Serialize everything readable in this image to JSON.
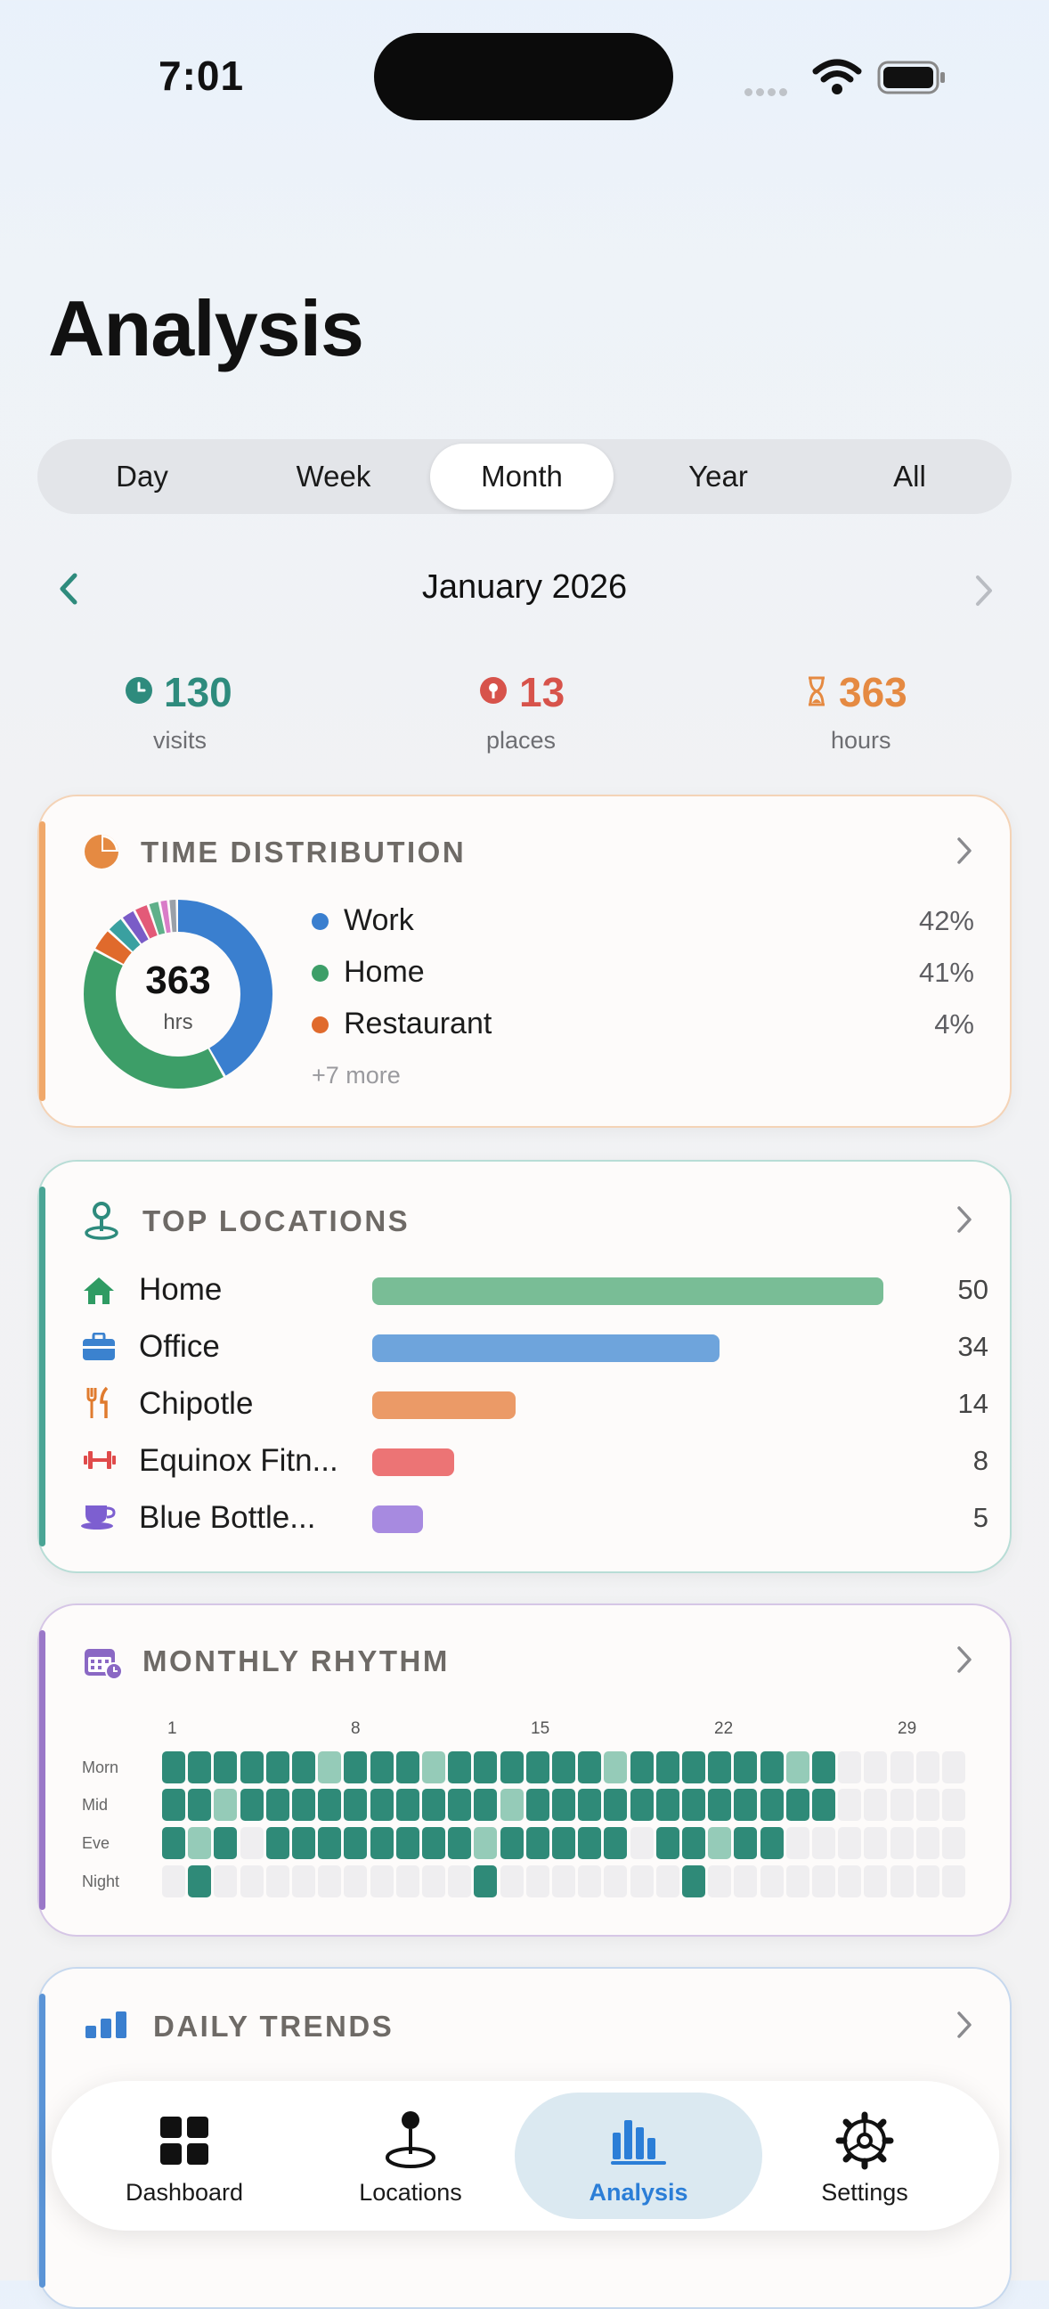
{
  "status_bar": {
    "time": "7:01"
  },
  "header": {
    "title": "Analysis"
  },
  "segments": [
    "Day",
    "Week",
    "Month",
    "Year",
    "All"
  ],
  "selected_segment": "Month",
  "period": {
    "label": "January 2026"
  },
  "stats": [
    {
      "value": "130",
      "label": "visits",
      "color": "#2e8b7d",
      "icon": "clock-icon"
    },
    {
      "value": "13",
      "label": "places",
      "color": "#d7534b",
      "icon": "pin-icon"
    },
    {
      "value": "363",
      "label": "hours",
      "color": "#e58a42",
      "icon": "hourglass-icon"
    }
  ],
  "time_distribution": {
    "title": "TIME DISTRIBUTION",
    "total": "363",
    "unit": "hrs",
    "items": [
      {
        "label": "Work",
        "pct": "42%",
        "color": "#3a7fcf"
      },
      {
        "label": "Home",
        "pct": "41%",
        "color": "#3d9e68"
      },
      {
        "label": "Restaurant",
        "pct": "4%",
        "color": "#e06a2c"
      }
    ],
    "more": "+7 more",
    "ring_slices": [
      {
        "value": 42,
        "color": "#3a7fcf"
      },
      {
        "value": 41,
        "color": "#3d9e68"
      },
      {
        "value": 4,
        "color": "#e06a2c"
      },
      {
        "value": 3,
        "color": "#3aa0a0"
      },
      {
        "value": 2.5,
        "color": "#7a5cc7"
      },
      {
        "value": 2.5,
        "color": "#e35a78"
      },
      {
        "value": 2,
        "color": "#5fb08a"
      },
      {
        "value": 1.5,
        "color": "#d97cc8"
      },
      {
        "value": 1.5,
        "color": "#9aa0a8"
      }
    ]
  },
  "top_locations": {
    "title": "TOP LOCATIONS",
    "max": 50,
    "items": [
      {
        "label": "Home",
        "value": "50",
        "count": 50,
        "color": "#79bd96",
        "icon": "house-icon"
      },
      {
        "label": "Office",
        "value": "34",
        "count": 34,
        "color": "#6ea4dc",
        "icon": "briefcase-icon"
      },
      {
        "label": "Chipotle",
        "value": "14",
        "count": 14,
        "color": "#eb9a67",
        "icon": "fork-knife-icon"
      },
      {
        "label": "Equinox Fitn...",
        "value": "8",
        "count": 8,
        "color": "#ec7475",
        "icon": "dumbbell-icon"
      },
      {
        "label": "Blue Bottle...",
        "value": "5",
        "count": 5,
        "color": "#a78ae0",
        "icon": "cup-icon"
      }
    ]
  },
  "monthly_rhythm": {
    "title": "MONTHLY RHYTHM",
    "day_labels": [
      "1",
      "8",
      "15",
      "22",
      "29"
    ],
    "rows": [
      "Morn",
      "Mid",
      "Eve",
      "Night"
    ],
    "levels": {
      "Morn": [
        2,
        2,
        2,
        2,
        2,
        2,
        1,
        2,
        2,
        2,
        1,
        2,
        2,
        2,
        2,
        2,
        2,
        1,
        2,
        2,
        2,
        2,
        2,
        2,
        1,
        2,
        0,
        0,
        0,
        0,
        0
      ],
      "Mid": [
        2,
        2,
        1,
        2,
        2,
        2,
        2,
        2,
        2,
        2,
        2,
        2,
        2,
        1,
        2,
        2,
        2,
        2,
        2,
        2,
        2,
        2,
        2,
        2,
        2,
        2,
        0,
        0,
        0,
        0,
        0
      ],
      "Eve": [
        2,
        1,
        2,
        0,
        2,
        2,
        2,
        2,
        2,
        2,
        2,
        2,
        1,
        2,
        2,
        2,
        2,
        2,
        0,
        2,
        2,
        1,
        2,
        2,
        0,
        0,
        0,
        0,
        0,
        0,
        0
      ],
      "Night": [
        0,
        2,
        0,
        0,
        0,
        0,
        0,
        0,
        0,
        0,
        0,
        0,
        2,
        0,
        0,
        0,
        0,
        0,
        0,
        0,
        2,
        0,
        0,
        0,
        0,
        0,
        0,
        0,
        0,
        0,
        0
      ]
    },
    "colors": {
      "empty": "#efeef0",
      "low": "#95cbb8",
      "high": "#2f8a78"
    }
  },
  "daily_trends": {
    "title": "DAILY TRENDS"
  },
  "tabs": [
    {
      "label": "Dashboard",
      "icon": "grid-icon"
    },
    {
      "label": "Locations",
      "icon": "location-pin-icon"
    },
    {
      "label": "Analysis",
      "icon": "bar-chart-icon"
    },
    {
      "label": "Settings",
      "icon": "gear-icon"
    }
  ],
  "active_tab": "Analysis"
}
